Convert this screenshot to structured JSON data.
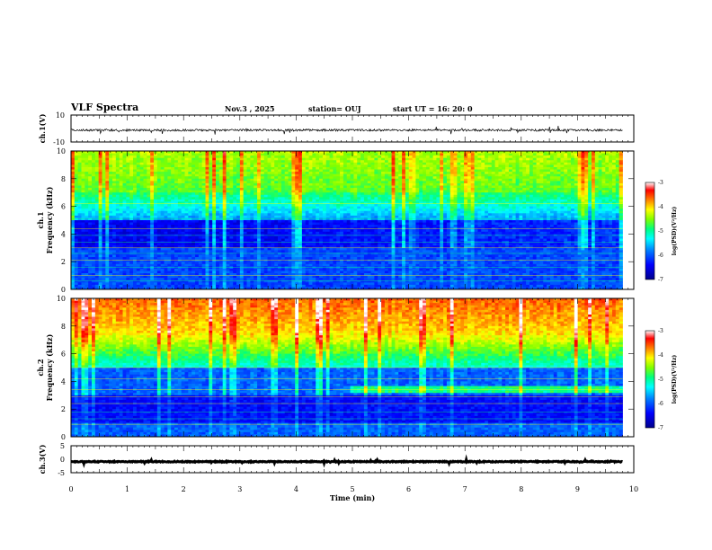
{
  "header": {
    "title": "VLF Spectra",
    "date": "Nov.3 , 2025",
    "station": "station= OUJ",
    "start": "start UT = 16: 20: 0"
  },
  "colors": {
    "scale": [
      "#00008b",
      "#0000ff",
      "#0080ff",
      "#00ffff",
      "#00ff80",
      "#80ff00",
      "#ffff00",
      "#ff8000",
      "#ff0000",
      "#ffffff"
    ]
  },
  "chart_data": [
    {
      "type": "line",
      "name": "ch1-waveform",
      "ylabel": "ch.1(V)",
      "ylim": [
        -10,
        10
      ],
      "yticks": [
        "10",
        "-10"
      ],
      "level": -1.2
    },
    {
      "type": "heatmap",
      "name": "ch1-spectrogram",
      "ylabel_channel": "ch.1",
      "ylabel": "Frequency (kHz)",
      "ylim": [
        0,
        10
      ],
      "yticks": [
        "0",
        "2",
        "4",
        "6",
        "8",
        "10"
      ],
      "colorbar": {
        "label": "log(PSD)(V²/Hz)",
        "range": [
          -7,
          -3
        ],
        "ticks": [
          "-3",
          "-4",
          "-5",
          "-6",
          "-7"
        ]
      }
    },
    {
      "type": "heatmap",
      "name": "ch2-spectrogram",
      "ylabel_channel": "ch.2",
      "ylabel": "Frequency (kHz)",
      "ylim": [
        0,
        10
      ],
      "yticks": [
        "0",
        "2",
        "4",
        "6",
        "8",
        "10"
      ],
      "colorbar": {
        "label": "log(PSD)(V²/Hz)",
        "range": [
          -7,
          -3
        ],
        "ticks": [
          "-3",
          "-4",
          "-5",
          "-6",
          "-7"
        ]
      }
    },
    {
      "type": "line",
      "name": "ch3-waveform",
      "ylabel": "ch.3(V)",
      "ylim": [
        -5,
        5
      ],
      "yticks": [
        "5",
        "0",
        "-5"
      ],
      "level": -0.9
    }
  ],
  "xaxis": {
    "label": "Time (min)",
    "range": [
      0,
      10
    ],
    "ticks": [
      "0",
      "1",
      "2",
      "3",
      "4",
      "5",
      "6",
      "7",
      "8",
      "9",
      "10"
    ],
    "data_end": 9.8
  }
}
